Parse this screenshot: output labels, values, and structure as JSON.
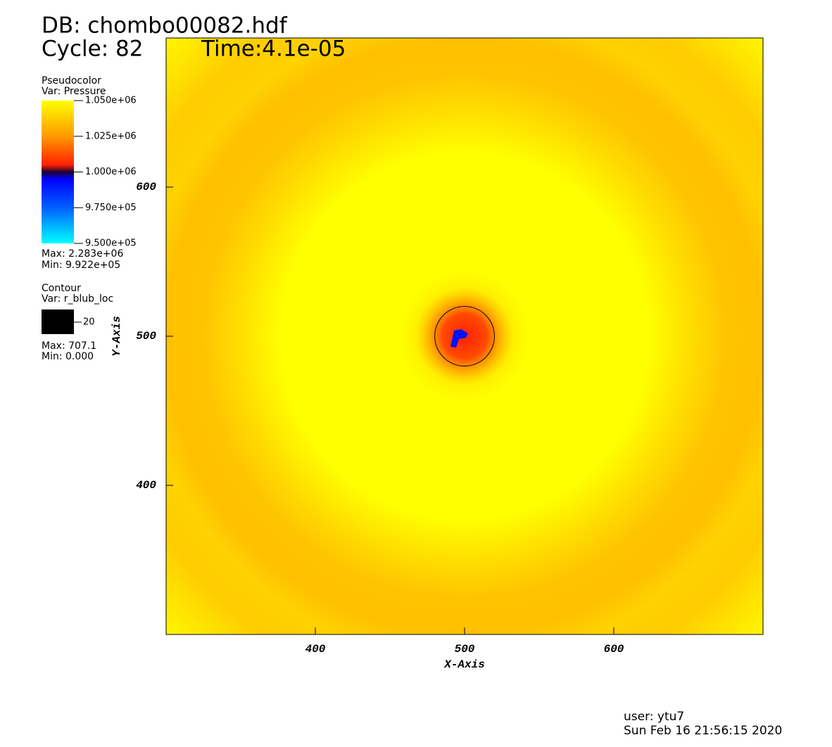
{
  "chart_data": {
    "type": "pseudocolor",
    "title": "DB: chombo00082.hdf",
    "cycle": "Cycle: 82",
    "time": "Time:4.1e-05",
    "x_label": "X-Axis",
    "y_label": "Y-Axis",
    "xlim": [
      300,
      700
    ],
    "ylim": [
      300,
      700
    ],
    "xticks": [
      400,
      500,
      600
    ],
    "yticks": [
      400,
      500,
      600
    ],
    "pseudocolor": {
      "name": "Pseudocolor",
      "var": "Var: Pressure",
      "clim": [
        950000,
        1050000
      ],
      "ticks": [
        {
          "value": 1050000,
          "label": "1.050e+06"
        },
        {
          "value": 1025000,
          "label": "1.025e+06"
        },
        {
          "value": 1000000,
          "label": "1.000e+06"
        },
        {
          "value": 975000,
          "label": "9.750e+05"
        },
        {
          "value": 950000,
          "label": "9.500e+05"
        }
      ],
      "max": "Max: 2.283e+06",
      "min": "Min: 9.922e+05"
    },
    "contour": {
      "name": "Contour",
      "var": "Var: r_blub_loc",
      "levels": [
        20
      ],
      "color": "#000000",
      "max": "Max: 707.1",
      "min": "Min: 0.000"
    },
    "user": "user: ytu7",
    "date": "Sun Feb 16 21:56:15 2020"
  }
}
